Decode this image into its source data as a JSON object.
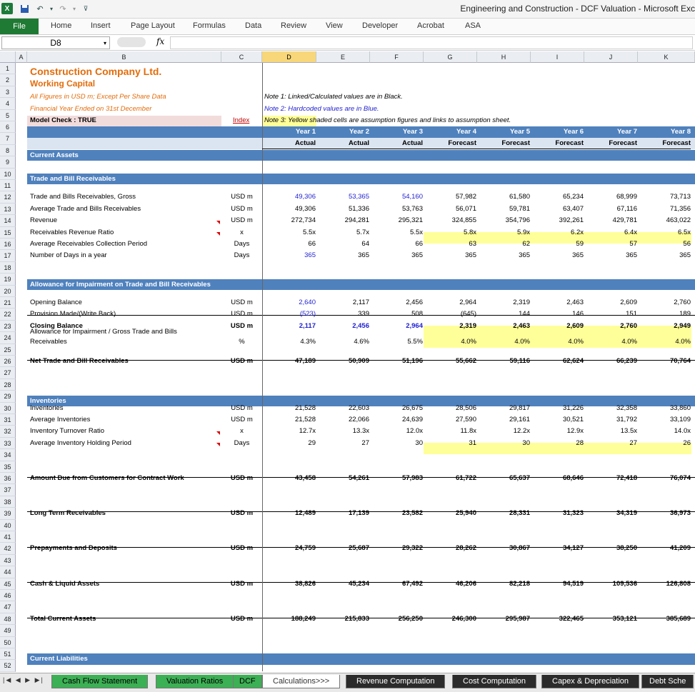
{
  "window": {
    "title": "Engineering and Construction - DCF Valuation - Microsoft Exc"
  },
  "quick_access": [
    "excel-logo",
    "save-icon",
    "undo-icon",
    "redo-icon",
    "customize-icon"
  ],
  "ribbon": {
    "tabs": [
      "File",
      "Home",
      "Insert",
      "Page Layout",
      "Formulas",
      "Data",
      "Review",
      "View",
      "Developer",
      "Acrobat",
      "ASA"
    ]
  },
  "formula_bar": {
    "name_box": "D8",
    "fx": "fx",
    "value": ""
  },
  "columns": [
    "A",
    "B",
    "C",
    "D",
    "E",
    "F",
    "G",
    "H",
    "I",
    "J",
    "K"
  ],
  "selected_column": "D",
  "row_numbers": [
    "1",
    "2",
    "3",
    "4",
    "5",
    "6",
    "7",
    "8",
    "9",
    "10",
    "11",
    "12",
    "13",
    "14",
    "15",
    "16",
    "17",
    "18",
    "19",
    "20",
    "21",
    "22",
    "23",
    "24",
    "25",
    "26",
    "27",
    "28",
    "29",
    "30",
    "31",
    "32",
    "33",
    "34",
    "35",
    "36",
    "37",
    "38",
    "39",
    "40",
    "41",
    "42",
    "43",
    "44",
    "45",
    "46",
    "47",
    "48",
    "49",
    "50",
    "51",
    "52"
  ],
  "header": {
    "company": "Construction Company Ltd.",
    "subtitle": "Working Capital",
    "figures_note": "All Figures in USD m; Except Per Share Data",
    "fy_note": "Financial Year Ended on 31st December",
    "model_check": "Model Check : TRUE",
    "index_link": "Index",
    "note1": "Note 1: Linked/Calculated values are in Black.",
    "note2": "Note 2: Hardcoded values are in Blue.",
    "note3": "Note 3: Yellow shaded cells are assumption figures and links to assumption sheet."
  },
  "years": [
    "Year 1",
    "Year 2",
    "Year 3",
    "Year 4",
    "Year 5",
    "Year 6",
    "Year 7",
    "Year 8"
  ],
  "status": [
    "Actual",
    "Actual",
    "Actual",
    "Forecast",
    "Forecast",
    "Forecast",
    "Forecast",
    "Forecast"
  ],
  "sections": {
    "current_assets": "Current Assets",
    "trade_receivables": "Trade and Bill Receivables",
    "allowance": "Allowance for Impairment on Trade and Bill Receivables",
    "inventories": "Inventories",
    "current_liabilities": "Current Liabilities"
  },
  "rows": [
    {
      "label": "Trade and Bills Receivables, Gross",
      "unit": "USD m",
      "values": [
        "49,306",
        "53,365",
        "54,160",
        "57,982",
        "61,580",
        "65,234",
        "68,999",
        "73,713"
      ]
    },
    {
      "label": "Average Trade and Bills Receivables",
      "unit": "USD m",
      "values": [
        "49,306",
        "51,336",
        "53,763",
        "56,071",
        "59,781",
        "63,407",
        "67,116",
        "71,356"
      ]
    },
    {
      "label": "Revenue",
      "unit": "USD m",
      "values": [
        "272,734",
        "294,281",
        "295,321",
        "324,855",
        "354,796",
        "392,261",
        "429,781",
        "463,022"
      ]
    },
    {
      "label": "Receivables Revenue Ratio",
      "unit": "x",
      "values": [
        "5.5x",
        "5.7x",
        "5.5x",
        "5.8x",
        "5.9x",
        "6.2x",
        "6.4x",
        "6.5x"
      ]
    },
    {
      "label": "Average Receivables Collection Period",
      "unit": "Days",
      "values": [
        "66",
        "64",
        "66",
        "63",
        "62",
        "59",
        "57",
        "56"
      ]
    },
    {
      "label": "Number of Days in a year",
      "unit": "Days",
      "values": [
        "365",
        "365",
        "365",
        "365",
        "365",
        "365",
        "365",
        "365"
      ]
    },
    {
      "label": "Opening Balance",
      "unit": "USD m",
      "values": [
        "2,640",
        "2,117",
        "2,456",
        "2,964",
        "2,319",
        "2,463",
        "2,609",
        "2,760"
      ]
    },
    {
      "label": "Provision Made/(Write Back)",
      "unit": "USD m",
      "values": [
        "(523)",
        "339",
        "508",
        "(645)",
        "144",
        "146",
        "151",
        "189"
      ]
    },
    {
      "label": "Closing Balance",
      "unit": "USD m",
      "values": [
        "2,117",
        "2,456",
        "2,964",
        "2,319",
        "2,463",
        "2,609",
        "2,760",
        "2,949"
      ]
    },
    {
      "label": "Allowance for Impairment / Gross Trade and Bills",
      "label2": "Receivables",
      "unit": "%",
      "values": [
        "4.3%",
        "4.6%",
        "5.5%",
        "4.0%",
        "4.0%",
        "4.0%",
        "4.0%",
        "4.0%"
      ]
    },
    {
      "label": "Net Trade and Bill Receivables",
      "unit": "USD m",
      "values": [
        "47,189",
        "50,909",
        "51,196",
        "55,662",
        "59,116",
        "62,624",
        "66,239",
        "70,764"
      ]
    },
    {
      "label": "Inventories",
      "unit": "USD m",
      "values": [
        "21,528",
        "22,603",
        "26,675",
        "28,506",
        "29,817",
        "31,226",
        "32,358",
        "33,860"
      ]
    },
    {
      "label": "Average Inventories",
      "unit": "USD m",
      "values": [
        "21,528",
        "22,066",
        "24,639",
        "27,590",
        "29,161",
        "30,521",
        "31,792",
        "33,109"
      ]
    },
    {
      "label": "Inventory Turnover Ratio",
      "unit": "x",
      "values": [
        "12.7x",
        "13.3x",
        "12.0x",
        "11.8x",
        "12.2x",
        "12.9x",
        "13.5x",
        "14.0x"
      ]
    },
    {
      "label": "Average Inventory Holding Period",
      "unit": "Days",
      "values": [
        "29",
        "27",
        "30",
        "31",
        "30",
        "28",
        "27",
        "26"
      ]
    },
    {
      "label": "Amount Due from Customers for Contract Work",
      "unit": "USD m",
      "values": [
        "43,458",
        "54,261",
        "57,983",
        "61,722",
        "65,637",
        "68,646",
        "72,418",
        "76,074"
      ]
    },
    {
      "label": "Long Term Receivables",
      "unit": "USD m",
      "values": [
        "12,489",
        "17,139",
        "23,582",
        "25,940",
        "28,331",
        "31,323",
        "34,319",
        "36,973"
      ]
    },
    {
      "label": "Prepayments and Deposits",
      "unit": "USD m",
      "values": [
        "24,759",
        "25,687",
        "29,322",
        "28,262",
        "30,867",
        "34,127",
        "38,250",
        "41,209"
      ]
    },
    {
      "label": "Cash & Liquid Assets",
      "unit": "USD m",
      "values": [
        "38,826",
        "45,234",
        "67,492",
        "46,206",
        "82,218",
        "94,519",
        "109,536",
        "126,808"
      ]
    },
    {
      "label": "Total Current Assets",
      "unit": "USD m",
      "values": [
        "188,249",
        "215,833",
        "256,250",
        "246,300",
        "295,987",
        "322,465",
        "353,121",
        "385,689"
      ]
    }
  ],
  "sheet_tabs": [
    "Cash Flow Statement",
    "Valuation Ratios",
    "DCF",
    "Calculations>>>",
    "Revenue Computation",
    "Cost Computation",
    "Capex & Depreciation",
    "Debt Sche"
  ],
  "colors": {
    "band": "#4f81bd",
    "hardcoded": "#1f1fd0",
    "assumption": "#ffff99",
    "title": "#e36c0a",
    "file_tab": "#1f7a34",
    "sheet_tab_green": "#3cb054"
  }
}
